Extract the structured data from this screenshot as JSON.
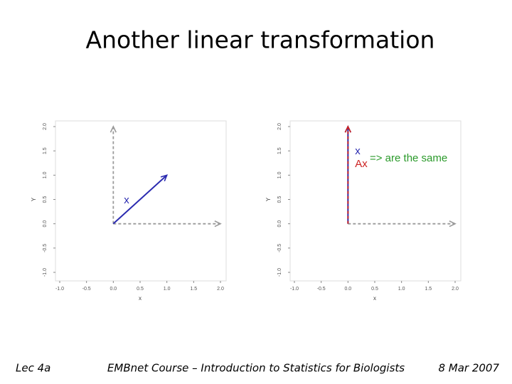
{
  "slide": {
    "title": "Another linear transformation",
    "footer_left": "Lec 4a",
    "footer_center": "EMBnet Course – Introduction to Statistics for Biologists",
    "footer_right": "8 Mar 2007"
  },
  "chart_data": [
    {
      "type": "vector",
      "xlabel": "x",
      "ylabel": "Y",
      "xlim": [
        -1,
        2
      ],
      "ylim": [
        -1,
        2
      ],
      "xticks": [
        {
          "value": -1,
          "label": "-1.0"
        },
        {
          "value": -0.5,
          "label": "-0.5"
        },
        {
          "value": 0,
          "label": "0.0"
        },
        {
          "value": 0.5,
          "label": "0.5"
        },
        {
          "value": 1,
          "label": "1.0"
        },
        {
          "value": 1.5,
          "label": "1.5"
        },
        {
          "value": 2,
          "label": "2.0"
        }
      ],
      "yticks": [
        {
          "value": -1,
          "label": "-1.0"
        },
        {
          "value": -0.5,
          "label": "-0.5"
        },
        {
          "value": 0,
          "label": "0.0"
        },
        {
          "value": 0.5,
          "label": "0.5"
        },
        {
          "value": 1,
          "label": "1.0"
        },
        {
          "value": 1.5,
          "label": "1.5"
        },
        {
          "value": 2,
          "label": "2.0"
        }
      ],
      "series": [
        {
          "color": "#9a9a9a",
          "dashed": true,
          "x": [
            0,
            0
          ],
          "y": [
            0,
            2
          ]
        },
        {
          "color": "#9a9a9a",
          "dashed": true,
          "x": [
            0,
            2
          ],
          "y": [
            0,
            0
          ]
        },
        {
          "name": "x",
          "color": "#2b2bb0",
          "dashed": false,
          "x": [
            0,
            1
          ],
          "y": [
            0,
            1
          ]
        }
      ]
    },
    {
      "type": "vector",
      "xlabel": "x",
      "ylabel": "Y",
      "xlim": [
        -1,
        2
      ],
      "ylim": [
        -1,
        2
      ],
      "xticks": [
        {
          "value": -1,
          "label": "-1.0"
        },
        {
          "value": -0.5,
          "label": "-0.5"
        },
        {
          "value": 0,
          "label": "0.0"
        },
        {
          "value": 0.5,
          "label": "0.5"
        },
        {
          "value": 1,
          "label": "1.0"
        },
        {
          "value": 1.5,
          "label": "1.5"
        },
        {
          "value": 2,
          "label": "2.0"
        }
      ],
      "yticks": [
        {
          "value": -1,
          "label": "-1.0"
        },
        {
          "value": -0.5,
          "label": "-0.5"
        },
        {
          "value": 0,
          "label": "0.0"
        },
        {
          "value": 0.5,
          "label": "0.5"
        },
        {
          "value": 1,
          "label": "1.0"
        },
        {
          "value": 1.5,
          "label": "1.5"
        },
        {
          "value": 2,
          "label": "2.0"
        }
      ],
      "series": [
        {
          "color": "#9a9a9a",
          "dashed": true,
          "x": [
            0,
            0
          ],
          "y": [
            0,
            2
          ]
        },
        {
          "color": "#9a9a9a",
          "dashed": true,
          "x": [
            0,
            2
          ],
          "y": [
            0,
            0
          ]
        },
        {
          "name": "x",
          "color": "#2b2bb0",
          "dashed": false,
          "x": [
            0,
            0
          ],
          "y": [
            0,
            2
          ]
        },
        {
          "name": "Ax",
          "color": "#cc2222",
          "dashed": true,
          "x": [
            0,
            0
          ],
          "y": [
            0,
            2
          ]
        }
      ],
      "annotation": "=> are the same",
      "annotation_color": "#2a9a2a"
    }
  ]
}
